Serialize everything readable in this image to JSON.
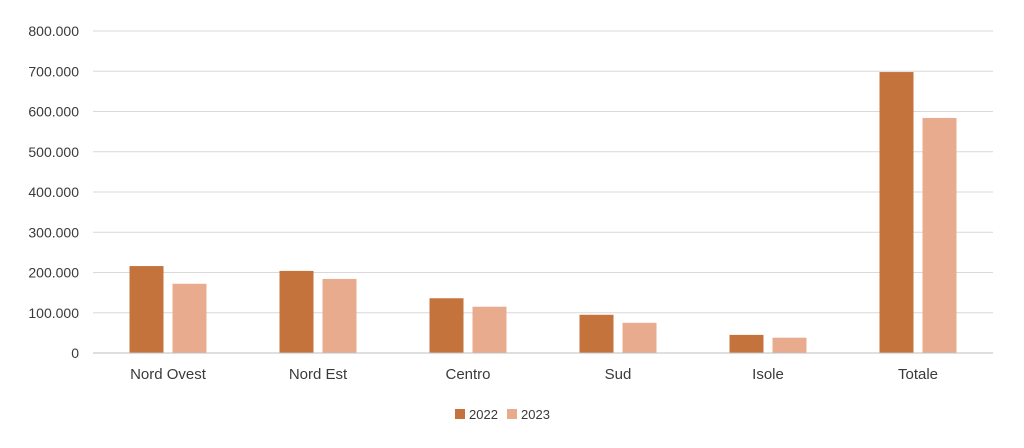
{
  "chart_data": {
    "type": "bar",
    "categories": [
      "Nord Ovest",
      "Nord Est",
      "Centro",
      "Sud",
      "Isole",
      "Totale"
    ],
    "series": [
      {
        "name": "2022",
        "color": "#c5733c",
        "values": [
          216000,
          204000,
          136000,
          95000,
          45000,
          698000
        ]
      },
      {
        "name": "2023",
        "color": "#e8ab8e",
        "values": [
          172000,
          184000,
          115000,
          75000,
          38000,
          584000
        ]
      }
    ],
    "title": "",
    "xlabel": "",
    "ylabel": "",
    "ylim": [
      0,
      800000
    ],
    "yticks": [
      0,
      100000,
      200000,
      300000,
      400000,
      500000,
      600000,
      700000,
      800000
    ],
    "ytick_labels": [
      "0",
      "100.000",
      "200.000",
      "300.000",
      "400.000",
      "500.000",
      "600.000",
      "700.000",
      "800.000"
    ],
    "grid": true,
    "legend_position": "bottom"
  }
}
